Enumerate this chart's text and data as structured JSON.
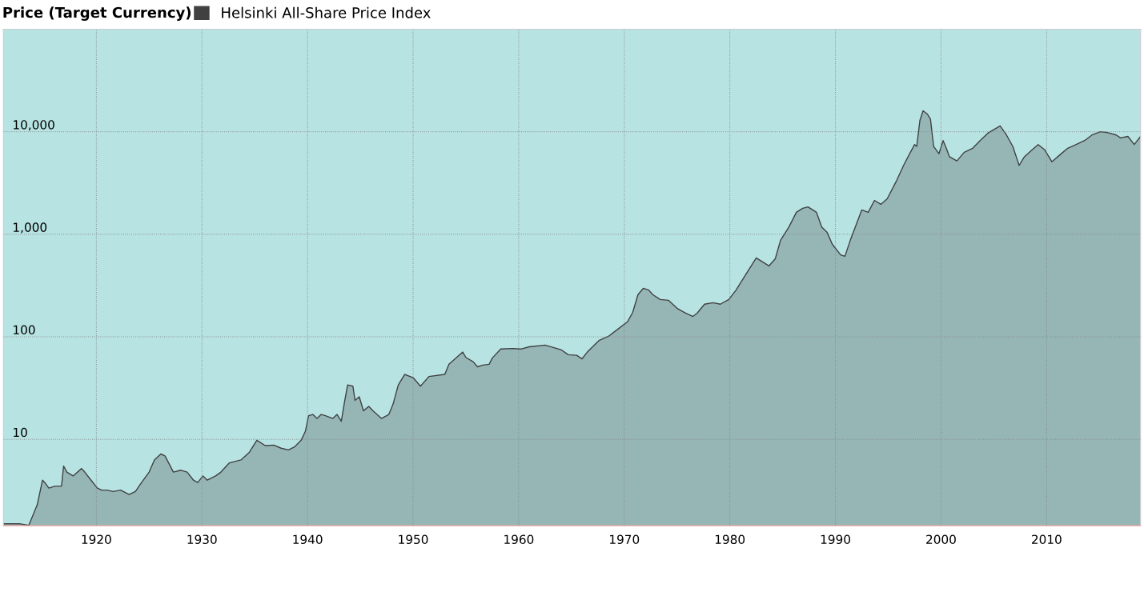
{
  "chart_data": {
    "type": "area",
    "title": "Price (Target Currency)",
    "x": [
      1911.2,
      1912.8,
      1913.6,
      1914.4,
      1914.9,
      1915.2,
      1915.5,
      1916.1,
      1916.7,
      1916.9,
      1917.2,
      1917.8,
      1918.6,
      1918.9,
      1919.5,
      1920.1,
      1920.5,
      1921.0,
      1921.6,
      1922.3,
      1923.1,
      1923.7,
      1924.2,
      1925.0,
      1925.5,
      1926.1,
      1926.5,
      1927.3,
      1928.0,
      1928.6,
      1929.2,
      1929.6,
      1930.1,
      1930.5,
      1931.3,
      1931.8,
      1932.6,
      1933.7,
      1934.5,
      1935.2,
      1936.0,
      1936.8,
      1937.5,
      1938.2,
      1938.8,
      1939.4,
      1939.8,
      1940.1,
      1940.5,
      1940.9,
      1941.3,
      1941.7,
      1942.4,
      1942.8,
      1943.2,
      1943.5,
      1943.8,
      1944.3,
      1944.5,
      1944.9,
      1945.3,
      1945.8,
      1946.2,
      1947.0,
      1947.7,
      1948.1,
      1948.6,
      1949.2,
      1950.0,
      1950.7,
      1951.5,
      1953.0,
      1953.4,
      1954.7,
      1955.0,
      1955.7,
      1956.1,
      1956.6,
      1957.2,
      1957.5,
      1958.3,
      1959.4,
      1960.2,
      1961.0,
      1962.5,
      1964.0,
      1964.7,
      1965.5,
      1966.0,
      1966.5,
      1967.6,
      1968.5,
      1969.5,
      1970.3,
      1970.8,
      1971.3,
      1971.8,
      1972.3,
      1972.7,
      1973.4,
      1974.2,
      1975.0,
      1975.7,
      1976.5,
      1976.9,
      1977.6,
      1978.4,
      1979.1,
      1979.9,
      1980.6,
      1981.4,
      1982.5,
      1983.7,
      1984.3,
      1984.8,
      1985.6,
      1986.3,
      1986.9,
      1987.4,
      1988.2,
      1988.7,
      1989.2,
      1989.7,
      1990.5,
      1990.9,
      1991.4,
      1992.5,
      1993.1,
      1993.7,
      1994.3,
      1994.9,
      1995.8,
      1996.5,
      1997.1,
      1997.5,
      1997.7,
      1998.0,
      1998.3,
      1998.7,
      1999.0,
      1999.3,
      1999.8,
      2000.2,
      2000.5,
      2000.8,
      2001.5,
      2002.2,
      2003.0,
      2003.7,
      2004.5,
      2005.6,
      2006.2,
      2006.8,
      2007.4,
      2007.9,
      2008.5,
      2009.2,
      2009.8,
      2010.5,
      2011.3,
      2012.0,
      2012.8,
      2013.6,
      2014.3,
      2015.1,
      2015.8,
      2016.6,
      2017.0,
      2017.7,
      2018.3,
      2018.9
    ],
    "series": [
      {
        "name": "Helsinki All-Share Price Index",
        "color": "#404040",
        "values": [
          1.5,
          1.5,
          1.45,
          2.3,
          4.0,
          3.7,
          3.35,
          3.5,
          3.5,
          5.5,
          4.8,
          4.4,
          5.2,
          4.8,
          4.0,
          3.35,
          3.2,
          3.2,
          3.1,
          3.2,
          2.9,
          3.1,
          3.7,
          4.8,
          6.3,
          7.2,
          6.9,
          4.8,
          5.0,
          4.8,
          4.0,
          3.8,
          4.4,
          4.0,
          4.4,
          4.8,
          5.9,
          6.3,
          7.5,
          9.8,
          8.7,
          8.8,
          8.2,
          7.9,
          8.5,
          9.8,
          12,
          17,
          17.5,
          16,
          17.5,
          17,
          16,
          17.5,
          15,
          23,
          34,
          33,
          24,
          26,
          19,
          21,
          19,
          16,
          17.5,
          22,
          34,
          43,
          40,
          33,
          41,
          43,
          54,
          71,
          63,
          57,
          51,
          53,
          54,
          62,
          76,
          77,
          76,
          80,
          83,
          75,
          67,
          66,
          61,
          71,
          92,
          101,
          121,
          140,
          173,
          258,
          297,
          287,
          258,
          231,
          227,
          190,
          173,
          158,
          170,
          208,
          215,
          208,
          231,
          287,
          389,
          588,
          491,
          577,
          873,
          1180,
          1640,
          1790,
          1850,
          1640,
          1180,
          1050,
          800,
          630,
          610,
          870,
          1730,
          1640,
          2140,
          1960,
          2220,
          3350,
          4800,
          6300,
          7500,
          7200,
          12900,
          16000,
          14900,
          13300,
          7200,
          6100,
          8200,
          6900,
          5700,
          5200,
          6300,
          6900,
          8200,
          9800,
          11400,
          9300,
          7200,
          4700,
          5700,
          6500,
          7500,
          6700,
          5100,
          6000,
          6900,
          7500,
          8200,
          9300,
          10000,
          9800,
          9300,
          8700,
          9000,
          7500,
          9000
        ]
      }
    ],
    "ylim": [
      1.44,
      100000
    ],
    "yticks": [
      10,
      100,
      {
        "value": 1000,
        "label": "1,000"
      },
      {
        "value": 10000,
        "label": "10,000"
      }
    ],
    "xlim": [
      1911.2,
      2018.9
    ],
    "xticks": [
      1920,
      1930,
      1940,
      1950,
      1960,
      1970,
      1980,
      1990,
      2000,
      2010
    ],
    "log": true,
    "grid": true,
    "legend": "top"
  }
}
